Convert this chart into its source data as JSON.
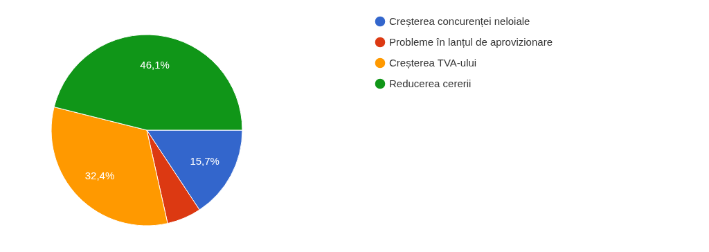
{
  "chart_data": {
    "type": "pie",
    "categories": [
      "Creșterea concurenței neloiale",
      "Probleme în lanțul de aprovizionare",
      "Creșterea TVA-ului",
      "Reducerea cererii"
    ],
    "values": [
      15.7,
      5.8,
      32.4,
      46.1
    ],
    "colors": [
      "#3366cc",
      "#dc3912",
      "#ff9900",
      "#109618"
    ],
    "value_labels": [
      "15,7%",
      null,
      "32,4%",
      "46,1%"
    ],
    "legend": "top right"
  }
}
